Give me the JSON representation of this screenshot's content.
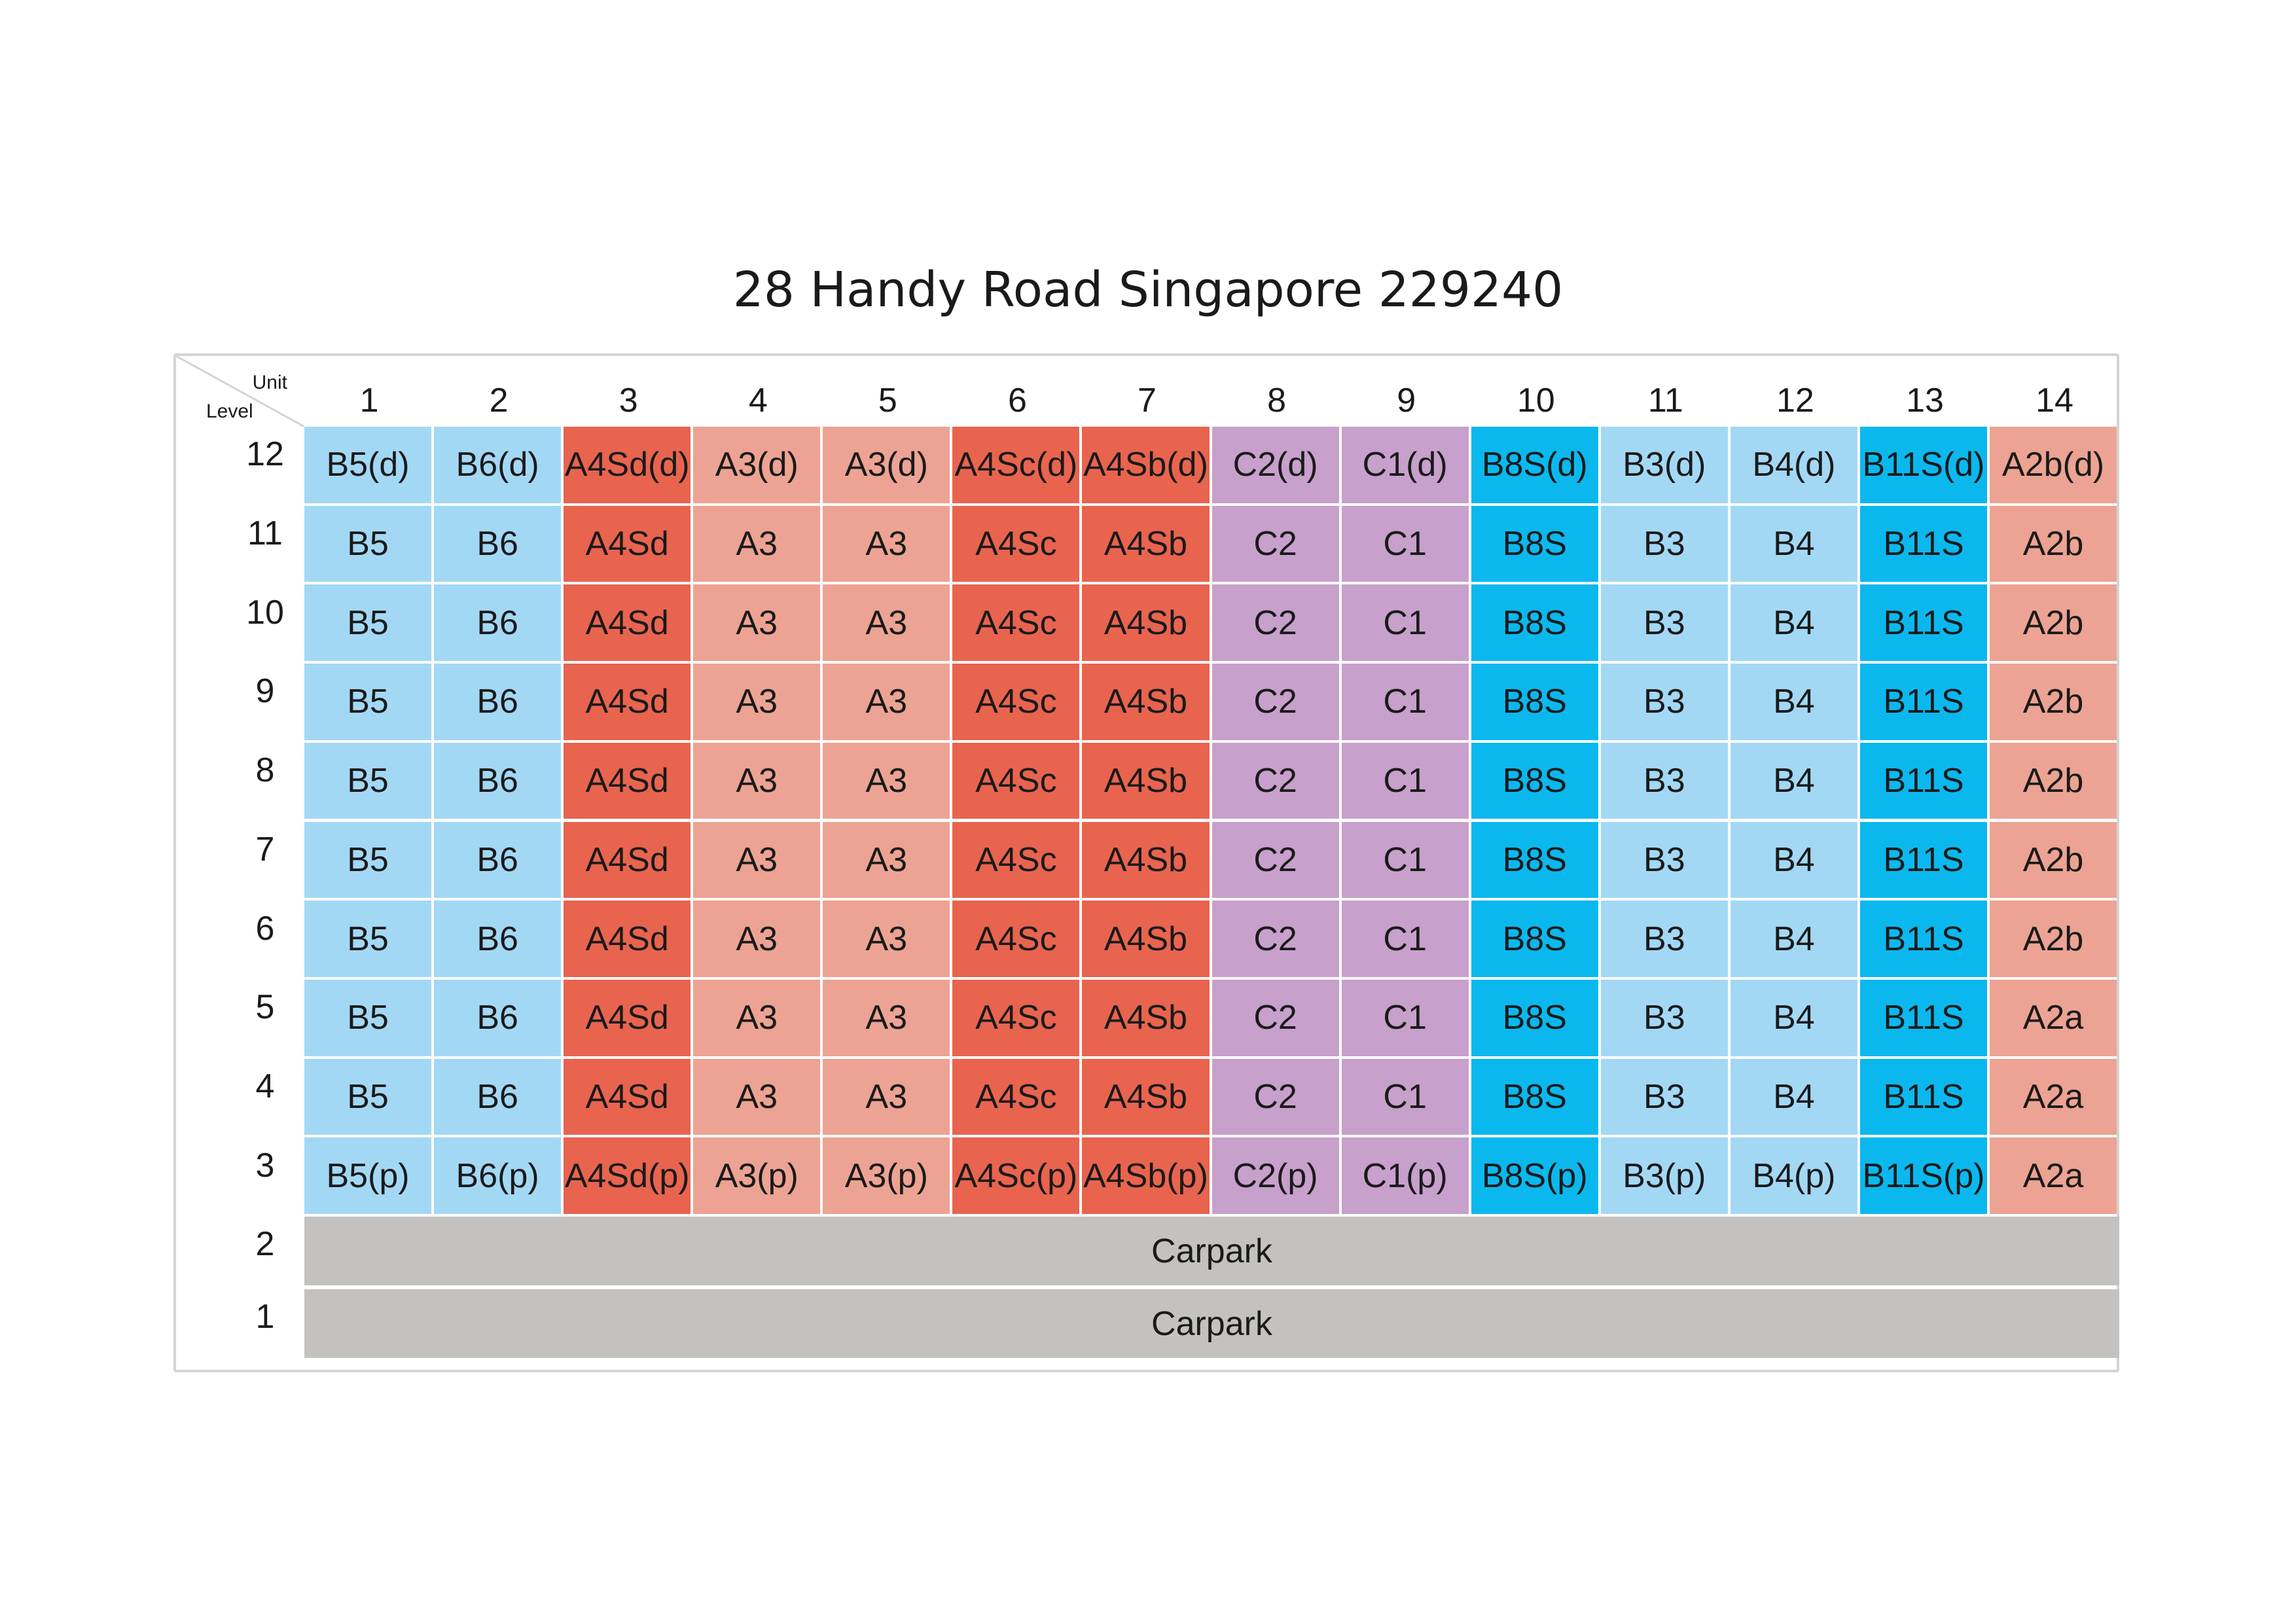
{
  "title": "28 Handy Road Singapore 229240",
  "corner": {
    "unit_label": "Unit",
    "level_label": "Level"
  },
  "units": [
    "1",
    "2",
    "3",
    "4",
    "5",
    "6",
    "7",
    "8",
    "9",
    "10",
    "11",
    "12",
    "13",
    "14"
  ],
  "colors": {
    "B": "#a3d8f5",
    "BS": "#0bb8ee",
    "A4": "#e8644f",
    "A3": "#eca393",
    "C": "#c7a0cc",
    "carpark": "#c3c2c0"
  },
  "column_types": [
    "B",
    "B",
    "A4",
    "A3",
    "A3",
    "A4",
    "A4",
    "C",
    "C",
    "BS",
    "B",
    "B",
    "BS",
    "A3"
  ],
  "rows": [
    {
      "level": "12",
      "cells": [
        "B5(d)",
        "B6(d)",
        "A4Sd(d)",
        "A3(d)",
        "A3(d)",
        "A4Sc(d)",
        "A4Sb(d)",
        "C2(d)",
        "C1(d)",
        "B8S(d)",
        "B3(d)",
        "B4(d)",
        "B11S(d)",
        "A2b(d)"
      ]
    },
    {
      "level": "11",
      "cells": [
        "B5",
        "B6",
        "A4Sd",
        "A3",
        "A3",
        "A4Sc",
        "A4Sb",
        "C2",
        "C1",
        "B8S",
        "B3",
        "B4",
        "B11S",
        "A2b"
      ]
    },
    {
      "level": "10",
      "cells": [
        "B5",
        "B6",
        "A4Sd",
        "A3",
        "A3",
        "A4Sc",
        "A4Sb",
        "C2",
        "C1",
        "B8S",
        "B3",
        "B4",
        "B11S",
        "A2b"
      ]
    },
    {
      "level": "9",
      "cells": [
        "B5",
        "B6",
        "A4Sd",
        "A3",
        "A3",
        "A4Sc",
        "A4Sb",
        "C2",
        "C1",
        "B8S",
        "B3",
        "B4",
        "B11S",
        "A2b"
      ]
    },
    {
      "level": "8",
      "cells": [
        "B5",
        "B6",
        "A4Sd",
        "A3",
        "A3",
        "A4Sc",
        "A4Sb",
        "C2",
        "C1",
        "B8S",
        "B3",
        "B4",
        "B11S",
        "A2b"
      ]
    },
    {
      "level": "7",
      "cells": [
        "B5",
        "B6",
        "A4Sd",
        "A3",
        "A3",
        "A4Sc",
        "A4Sb",
        "C2",
        "C1",
        "B8S",
        "B3",
        "B4",
        "B11S",
        "A2b"
      ]
    },
    {
      "level": "6",
      "cells": [
        "B5",
        "B6",
        "A4Sd",
        "A3",
        "A3",
        "A4Sc",
        "A4Sb",
        "C2",
        "C1",
        "B8S",
        "B3",
        "B4",
        "B11S",
        "A2b"
      ]
    },
    {
      "level": "5",
      "cells": [
        "B5",
        "B6",
        "A4Sd",
        "A3",
        "A3",
        "A4Sc",
        "A4Sb",
        "C2",
        "C1",
        "B8S",
        "B3",
        "B4",
        "B11S",
        "A2a"
      ]
    },
    {
      "level": "4",
      "cells": [
        "B5",
        "B6",
        "A4Sd",
        "A3",
        "A3",
        "A4Sc",
        "A4Sb",
        "C2",
        "C1",
        "B8S",
        "B3",
        "B4",
        "B11S",
        "A2a"
      ]
    },
    {
      "level": "3",
      "cells": [
        "B5(p)",
        "B6(p)",
        "A4Sd(p)",
        "A3(p)",
        "A3(p)",
        "A4Sc(p)",
        "A4Sb(p)",
        "C2(p)",
        "C1(p)",
        "B8S(p)",
        "B3(p)",
        "B4(p)",
        "B11S(p)",
        "A2a"
      ]
    }
  ],
  "carpark_rows": [
    {
      "level": "2",
      "label": "Carpark"
    },
    {
      "level": "1",
      "label": "Carpark"
    }
  ]
}
